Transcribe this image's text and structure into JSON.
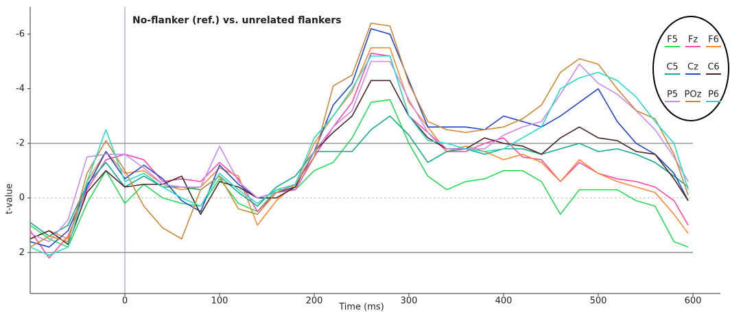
{
  "chart_data": {
    "type": "line",
    "title": "No-flanker (ref.) vs. unrelated flankers",
    "xlabel": "Time (ms)",
    "ylabel": "t-value",
    "x": [
      -100,
      -80,
      -60,
      -40,
      -20,
      0,
      20,
      40,
      60,
      80,
      100,
      120,
      140,
      160,
      180,
      200,
      220,
      240,
      260,
      280,
      300,
      320,
      340,
      360,
      380,
      400,
      420,
      440,
      460,
      480,
      500,
      520,
      540,
      560,
      580,
      595
    ],
    "series": [
      {
        "name": "F5",
        "color": "#22dd55",
        "values": [
          1.0,
          1.5,
          1.8,
          0.2,
          -1.0,
          0.2,
          -0.5,
          0.0,
          0.2,
          0.3,
          -0.7,
          0.2,
          0.5,
          -0.3,
          -0.3,
          -1.0,
          -1.3,
          -2.2,
          -3.5,
          -3.6,
          -2.0,
          -0.8,
          -0.3,
          -0.6,
          -0.7,
          -1.0,
          -1.0,
          -0.6,
          0.6,
          -0.3,
          -0.3,
          -0.3,
          0.1,
          0.3,
          1.6,
          1.8
        ]
      },
      {
        "name": "Fz",
        "color": "#ff44aa",
        "values": [
          1.2,
          2.2,
          1.4,
          -0.3,
          -1.4,
          -1.6,
          -1.4,
          -0.6,
          -0.7,
          -0.6,
          -1.3,
          -0.7,
          0.5,
          -0.2,
          -0.3,
          -1.5,
          -2.6,
          -3.5,
          -5.3,
          -5.2,
          -3.0,
          -2.4,
          -1.7,
          -1.7,
          -2.0,
          -2.2,
          -1.5,
          -1.4,
          -0.6,
          -1.3,
          -0.9,
          -0.7,
          -0.6,
          -0.4,
          0.1,
          1.0
        ]
      },
      {
        "name": "F6",
        "color": "#ff8833",
        "values": [
          1.5,
          1.2,
          1.5,
          -0.6,
          -1.7,
          -0.9,
          -1.0,
          -0.5,
          -0.3,
          -0.4,
          -1.1,
          -0.8,
          1.0,
          0.1,
          -0.5,
          -2.0,
          -3.0,
          -3.9,
          -5.5,
          -5.5,
          -3.5,
          -2.6,
          -1.7,
          -1.9,
          -1.7,
          -1.4,
          -1.6,
          -1.3,
          -0.6,
          -1.4,
          -0.9,
          -0.6,
          -0.4,
          -0.2,
          0.6,
          1.3
        ]
      },
      {
        "name": "C5",
        "color": "#11aa88",
        "values": [
          0.9,
          1.4,
          1.0,
          -0.5,
          -1.3,
          -0.4,
          -0.8,
          -0.4,
          -0.4,
          -0.3,
          -0.8,
          -0.2,
          0.3,
          -0.4,
          -0.8,
          -1.7,
          -1.7,
          -1.7,
          -2.5,
          -3.0,
          -2.3,
          -1.3,
          -1.7,
          -1.8,
          -1.6,
          -1.8,
          -1.8,
          -1.6,
          -1.8,
          -2.0,
          -1.7,
          -1.8,
          -1.6,
          -1.3,
          -0.8,
          -0.4
        ]
      },
      {
        "name": "Cz",
        "color": "#2244cc",
        "values": [
          1.6,
          1.8,
          1.2,
          -0.4,
          -1.7,
          -0.7,
          -1.2,
          -0.7,
          0.1,
          0.5,
          -1.2,
          -0.5,
          0.0,
          -0.2,
          -0.4,
          -1.7,
          -3.4,
          -4.2,
          -6.2,
          -6.0,
          -4.3,
          -2.6,
          -2.6,
          -2.6,
          -2.5,
          -3.0,
          -2.8,
          -2.6,
          -3.0,
          -3.5,
          -4.0,
          -2.8,
          -2.0,
          -1.6,
          -0.9,
          0.1
        ]
      },
      {
        "name": "C6",
        "color": "#442222",
        "values": [
          1.5,
          1.2,
          1.7,
          -0.2,
          -1.0,
          -0.4,
          -0.5,
          -0.5,
          -0.8,
          0.6,
          -0.6,
          -0.4,
          0.0,
          0.0,
          -0.4,
          -1.7,
          -2.4,
          -3.0,
          -4.3,
          -4.3,
          -3.0,
          -2.2,
          -1.8,
          -1.8,
          -2.2,
          -2.0,
          -1.9,
          -1.6,
          -2.2,
          -2.6,
          -2.2,
          -2.1,
          -1.7,
          -1.6,
          -0.7,
          0.1
        ]
      },
      {
        "name": "P5",
        "color": "#cc88ee",
        "values": [
          1.3,
          1.6,
          0.8,
          -1.5,
          -1.6,
          -1.6,
          -1.1,
          -0.5,
          -0.4,
          -0.4,
          -1.9,
          -0.6,
          0.0,
          -0.2,
          -0.5,
          -1.7,
          -2.6,
          -3.2,
          -5.0,
          -5.0,
          -3.6,
          -2.4,
          -1.8,
          -1.8,
          -1.8,
          -2.3,
          -2.6,
          -2.8,
          -3.8,
          -4.9,
          -4.2,
          -3.8,
          -3.2,
          -2.5,
          -1.5,
          -0.6
        ]
      },
      {
        "name": "POz",
        "color": "#cc8833",
        "values": [
          1.8,
          1.4,
          1.6,
          -0.9,
          -2.1,
          -1.0,
          0.3,
          1.1,
          1.5,
          -0.3,
          -0.8,
          0.4,
          0.6,
          -0.2,
          -0.5,
          -1.5,
          -4.1,
          -4.5,
          -6.4,
          -6.3,
          -4.2,
          -2.8,
          -2.5,
          -2.4,
          -2.5,
          -2.6,
          -2.9,
          -3.4,
          -4.6,
          -5.1,
          -4.9,
          -4.0,
          -3.2,
          -2.9,
          -1.6,
          -0.1
        ]
      },
      {
        "name": "P6",
        "color": "#22ddcc",
        "values": [
          1.8,
          2.1,
          1.8,
          -0.6,
          -2.5,
          -0.6,
          -0.9,
          -0.4,
          0.0,
          0.3,
          -0.9,
          -0.3,
          0.2,
          -0.3,
          -0.5,
          -2.2,
          -3.0,
          -4.0,
          -5.2,
          -5.2,
          -3.0,
          -2.1,
          -2.0,
          -1.8,
          -1.7,
          -1.8,
          -2.2,
          -2.6,
          -4.0,
          -4.4,
          -4.6,
          -4.3,
          -3.7,
          -2.8,
          -2.0,
          -0.3
        ]
      }
    ],
    "xlim": [
      -100,
      600
    ],
    "xticks": [
      0,
      100,
      200,
      300,
      400,
      500,
      600
    ],
    "ylim": [
      3.5,
      -7
    ],
    "yticks": [
      -6,
      -4,
      -2,
      0,
      2
    ],
    "ref_lines": [
      -2,
      2
    ],
    "zero_line": true,
    "vline_x": 0,
    "legend": "upper right"
  }
}
